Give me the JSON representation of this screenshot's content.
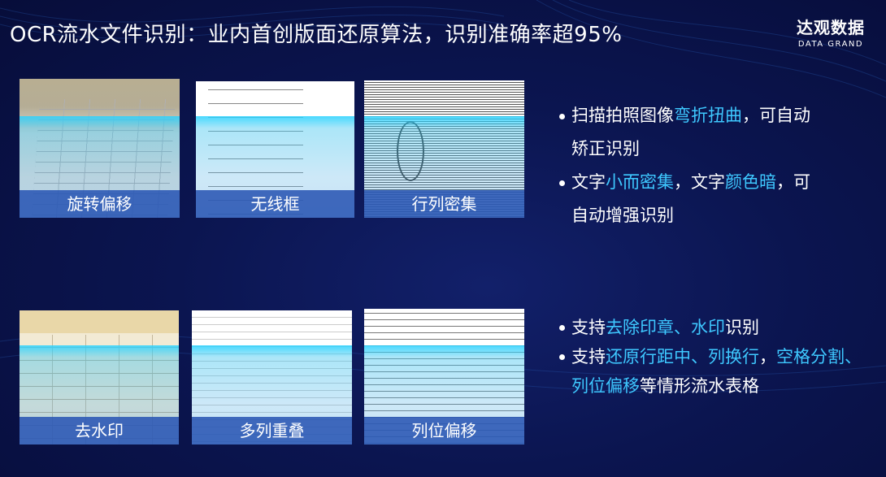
{
  "title": "OCR流水文件识别：业内首创版面还原算法，识别准确率超95%",
  "logo": {
    "cn": "达观数据",
    "en": "DATA GRAND"
  },
  "colors": {
    "highlight": "#3ec8ff",
    "label_band": "#2a56b4",
    "background": "#0b1550"
  },
  "cards": [
    {
      "label": "旋转偏移"
    },
    {
      "label": "无线框"
    },
    {
      "label": "行列密集"
    },
    {
      "label": "去水印"
    },
    {
      "label": "多列重叠"
    },
    {
      "label": "列位偏移"
    }
  ],
  "bullets_top": [
    {
      "line1": [
        {
          "t": "扫描拍照图像",
          "h": false
        },
        {
          "t": "弯折扭曲",
          "h": true
        },
        {
          "t": "，可自动",
          "h": false
        }
      ],
      "line2": "矫正识别"
    },
    {
      "line1": [
        {
          "t": "文字",
          "h": false
        },
        {
          "t": "小而密集",
          "h": true
        },
        {
          "t": "，文字",
          "h": false
        },
        {
          "t": "颜色暗",
          "h": true
        },
        {
          "t": "，可",
          "h": false
        }
      ],
      "line2": "自动增强识别"
    }
  ],
  "bullets_bottom": [
    {
      "line1": [
        {
          "t": "支持",
          "h": false
        },
        {
          "t": "去除印章、水印",
          "h": true
        },
        {
          "t": "识别",
          "h": false
        }
      ]
    },
    {
      "line1": [
        {
          "t": "支持",
          "h": false
        },
        {
          "t": "还原行距中、列换行",
          "h": true
        },
        {
          "t": "，",
          "h": false
        },
        {
          "t": "空格分割、",
          "h": true
        }
      ],
      "line2seg": [
        {
          "t": "列位偏移",
          "h": true
        },
        {
          "t": "等情形流水表格",
          "h": false
        }
      ]
    }
  ]
}
